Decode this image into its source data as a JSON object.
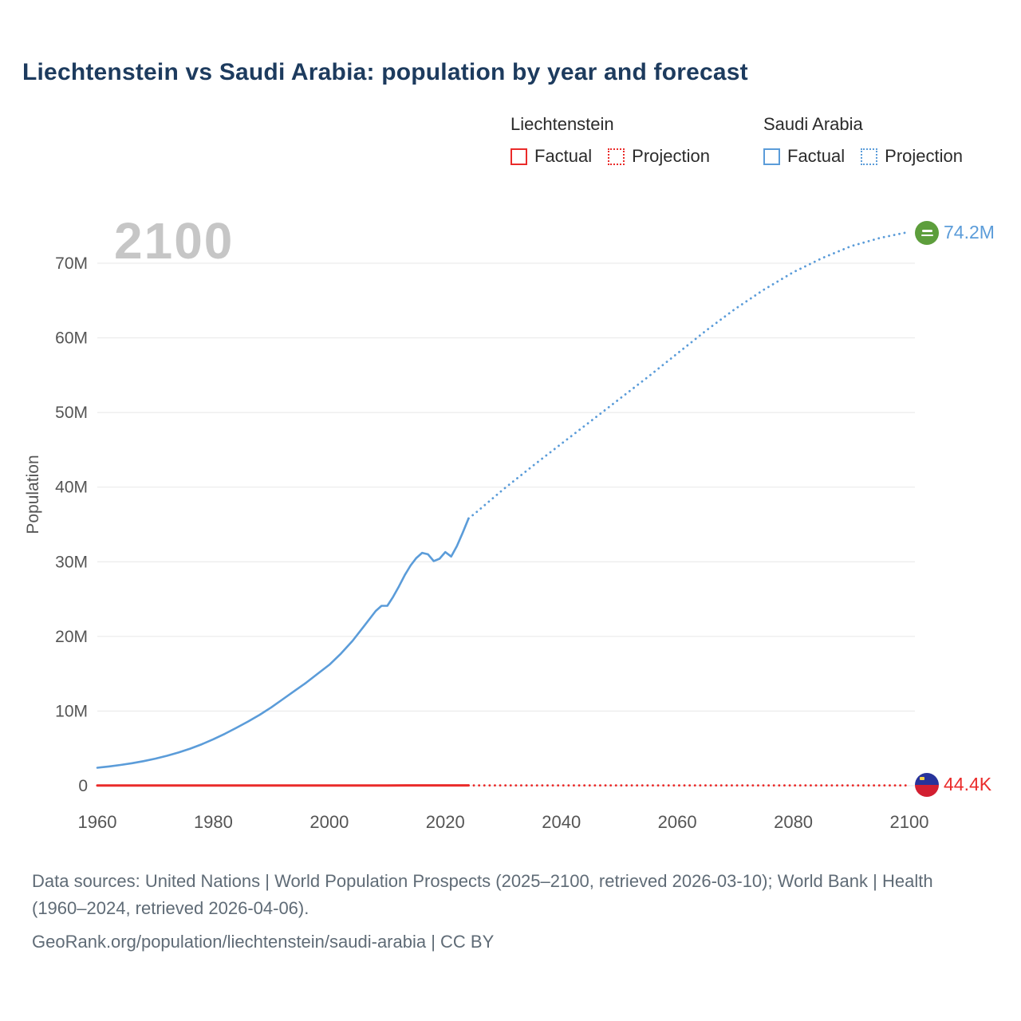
{
  "title": "Liechtenstein vs Saudi Arabia: population by year and forecast",
  "watermark_year": "2100",
  "colors": {
    "liechtenstein": "#ea2b2a",
    "saudi_arabia": "#5b9cd9",
    "title": "#1d3b5e",
    "grid": "#e7e7e7",
    "tick_text": "#555555",
    "watermark": "#c6c6c6",
    "footer_text": "#5f6b76",
    "saudi_flag_green": "#5d9e3c",
    "liech_flag_blue": "#27339b",
    "liech_flag_red": "#d21f31"
  },
  "legend": {
    "groups": [
      {
        "name": "Liechtenstein",
        "color": "#ea2b2a",
        "items": [
          {
            "label": "Factual",
            "style": "solid"
          },
          {
            "label": "Projection",
            "style": "dotted"
          }
        ]
      },
      {
        "name": "Saudi Arabia",
        "color": "#5b9cd9",
        "items": [
          {
            "label": "Factual",
            "style": "solid"
          },
          {
            "label": "Projection",
            "style": "dotted"
          }
        ]
      }
    ]
  },
  "end_labels": {
    "saudi_arabia": "74.2M",
    "liechtenstein": "44.4K"
  },
  "footer": {
    "sources": "Data sources: United Nations | World Population Prospects (2025–2100, retrieved 2026-03-10); World Bank | Health (1960–2024, retrieved 2026-04-06).",
    "georank": "GeoRank.org/population/liechtenstein/saudi-arabia | CC BY"
  },
  "chart_data": {
    "type": "line",
    "title": "Liechtenstein vs Saudi Arabia: population by year and forecast",
    "xlabel": "",
    "ylabel": "Population",
    "xlim": [
      1960,
      2100
    ],
    "ylim": [
      0,
      77000000
    ],
    "grid": "horizontal",
    "legend_position": "top-right",
    "x_ticks": [
      1960,
      1980,
      2000,
      2020,
      2040,
      2060,
      2080,
      2100
    ],
    "y_ticks": [
      {
        "value": 0,
        "label": "0"
      },
      {
        "value": 10000000,
        "label": "10M"
      },
      {
        "value": 20000000,
        "label": "20M"
      },
      {
        "value": 30000000,
        "label": "30M"
      },
      {
        "value": 40000000,
        "label": "40M"
      },
      {
        "value": 50000000,
        "label": "50M"
      },
      {
        "value": 60000000,
        "label": "60M"
      },
      {
        "value": 70000000,
        "label": "70M"
      }
    ],
    "series": [
      {
        "name": "Saudi Arabia — Factual",
        "color": "#5b9cd9",
        "style": "solid",
        "width": 2.6,
        "points": [
          [
            1960,
            2400000
          ],
          [
            1962,
            2580000
          ],
          [
            1964,
            2780000
          ],
          [
            1966,
            3010000
          ],
          [
            1968,
            3290000
          ],
          [
            1970,
            3620000
          ],
          [
            1972,
            4010000
          ],
          [
            1974,
            4450000
          ],
          [
            1976,
            4960000
          ],
          [
            1978,
            5550000
          ],
          [
            1980,
            6220000
          ],
          [
            1982,
            6960000
          ],
          [
            1984,
            7760000
          ],
          [
            1986,
            8600000
          ],
          [
            1988,
            9500000
          ],
          [
            1990,
            10500000
          ],
          [
            1992,
            11600000
          ],
          [
            1994,
            12700000
          ],
          [
            1996,
            13800000
          ],
          [
            1998,
            15000000
          ],
          [
            2000,
            16200000
          ],
          [
            2002,
            17700000
          ],
          [
            2004,
            19400000
          ],
          [
            2006,
            21400000
          ],
          [
            2008,
            23400000
          ],
          [
            2009,
            24100000
          ],
          [
            2010,
            24100000
          ],
          [
            2011,
            25300000
          ],
          [
            2012,
            26700000
          ],
          [
            2013,
            28200000
          ],
          [
            2014,
            29500000
          ],
          [
            2015,
            30500000
          ],
          [
            2016,
            31200000
          ],
          [
            2017,
            31000000
          ],
          [
            2018,
            30100000
          ],
          [
            2019,
            30400000
          ],
          [
            2020,
            31300000
          ],
          [
            2021,
            30700000
          ],
          [
            2022,
            32100000
          ],
          [
            2023,
            33900000
          ],
          [
            2024,
            35800000
          ]
        ]
      },
      {
        "name": "Saudi Arabia — Projection",
        "color": "#5b9cd9",
        "style": "dotted",
        "width": 2.8,
        "end_value_label": "74.2M",
        "points": [
          [
            2024,
            35800000
          ],
          [
            2025,
            36400000
          ],
          [
            2030,
            39700000
          ],
          [
            2035,
            42800000
          ],
          [
            2040,
            45800000
          ],
          [
            2045,
            48800000
          ],
          [
            2050,
            51800000
          ],
          [
            2055,
            54800000
          ],
          [
            2060,
            57900000
          ],
          [
            2065,
            61000000
          ],
          [
            2070,
            63900000
          ],
          [
            2075,
            66500000
          ],
          [
            2080,
            68800000
          ],
          [
            2085,
            70700000
          ],
          [
            2090,
            72300000
          ],
          [
            2095,
            73400000
          ],
          [
            2100,
            74200000
          ]
        ]
      },
      {
        "name": "Liechtenstein — Factual",
        "color": "#ea2b2a",
        "style": "solid",
        "width": 3,
        "points": [
          [
            1960,
            16400
          ],
          [
            1970,
            21300
          ],
          [
            1980,
            25300
          ],
          [
            1990,
            28800
          ],
          [
            2000,
            33200
          ],
          [
            2010,
            35900
          ],
          [
            2020,
            38900
          ],
          [
            2024,
            40100
          ]
        ]
      },
      {
        "name": "Liechtenstein — Projection",
        "color": "#ea2b2a",
        "style": "dotted",
        "width": 2.8,
        "end_value_label": "44.4K",
        "points": [
          [
            2024,
            40100
          ],
          [
            2040,
            42300
          ],
          [
            2060,
            43600
          ],
          [
            2080,
            44200
          ],
          [
            2100,
            44400
          ]
        ]
      }
    ]
  }
}
